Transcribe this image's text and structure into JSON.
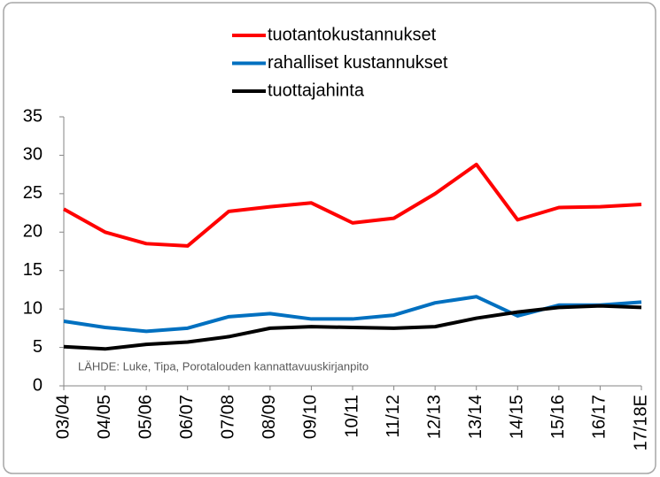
{
  "chart_data": {
    "type": "line",
    "categories": [
      "03/04",
      "04/05",
      "05/06",
      "06/07",
      "07/08",
      "08/09",
      "09/10",
      "10/11",
      "11/12",
      "12/13",
      "13/14",
      "14/15",
      "15/16",
      "16/17",
      "17/18E"
    ],
    "series": [
      {
        "name": "tuotantokustannukset",
        "color": "#ff0000",
        "values": [
          23,
          20,
          18.5,
          18.2,
          22.7,
          23.3,
          23.8,
          21.2,
          21.8,
          25,
          28.8,
          21.6,
          23.2,
          23.3,
          23.6
        ]
      },
      {
        "name": "rahalliset kustannukset",
        "color": "#0070c0",
        "values": [
          8.4,
          7.6,
          7.1,
          7.5,
          9.0,
          9.4,
          8.7,
          8.7,
          9.2,
          10.8,
          11.6,
          9.1,
          10.5,
          10.5,
          10.9
        ]
      },
      {
        "name": "tuottajahinta",
        "color": "#000000",
        "values": [
          5.1,
          4.8,
          5.4,
          5.7,
          6.4,
          7.5,
          7.7,
          7.6,
          7.5,
          7.7,
          8.8,
          9.6,
          10.2,
          10.4,
          10.2
        ]
      }
    ],
    "annotation": "LÄHDE: Luke, Tipa, Porotalouden kannattavuuskirjanpito",
    "ylim": [
      0,
      35
    ],
    "yticks": [
      0,
      5,
      10,
      15,
      20,
      25,
      30,
      35
    ],
    "grid": false,
    "legend": "top"
  }
}
